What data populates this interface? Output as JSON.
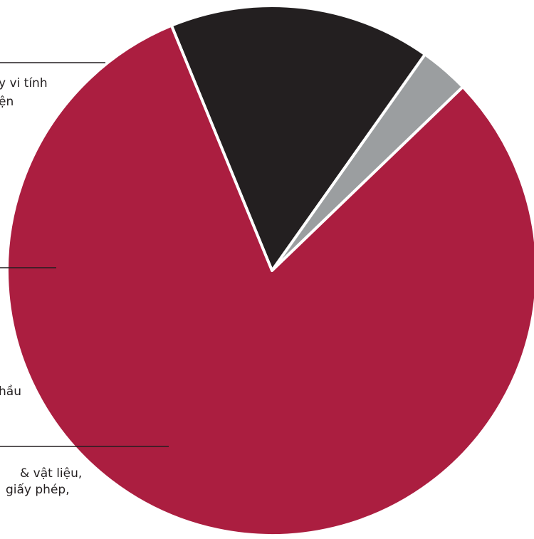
{
  "chart_data": {
    "type": "pie",
    "slices": [
      {
        "label_lines": [
          "y vi tính",
          "ện"
        ],
        "value": 16.0,
        "color": "#231f20"
      },
      {
        "label_lines": [],
        "value": 3.0,
        "color": "#9b9ea0"
      },
      {
        "label_lines": [
          "hầu"
        ],
        "value": 0,
        "color": "#ab1e40"
      },
      {
        "label_lines": [
          "& vật liệu,",
          "giấy phép,"
        ],
        "value": 81.0,
        "color": "#ab1e40"
      }
    ],
    "legend": "callout lines on left"
  }
}
